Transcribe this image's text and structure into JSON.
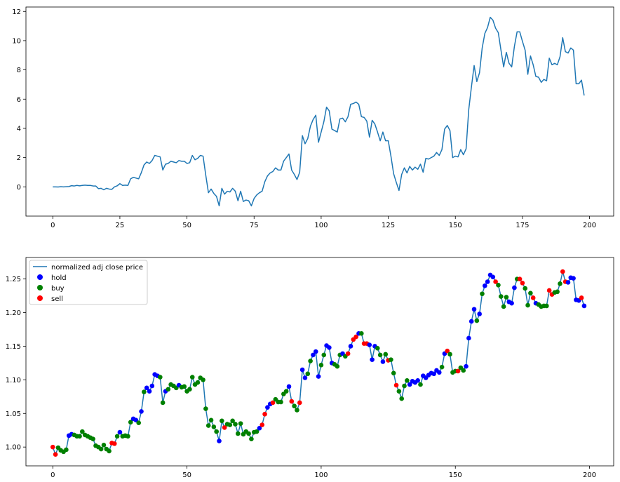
{
  "chart_data": [
    {
      "type": "line",
      "title": "",
      "xlabel": "",
      "ylabel": "",
      "xlim": [
        -10,
        209
      ],
      "ylim": [
        -2.0,
        12.3
      ],
      "xticks": [
        0,
        25,
        50,
        75,
        100,
        125,
        150,
        175,
        200
      ],
      "xtick_labels": [
        "0",
        "25",
        "50",
        "75",
        "100",
        "125",
        "150",
        "175",
        "200"
      ],
      "yticks": [
        0,
        2,
        4,
        6,
        8,
        10,
        12
      ],
      "ytick_labels": [
        "0",
        "2",
        "4",
        "6",
        "8",
        "10",
        "12"
      ],
      "grid": false,
      "line_color": "#1f77b4",
      "x_start": 0,
      "values": [
        0.0,
        0.0,
        -0.01,
        0.01,
        0.0,
        0.01,
        0.02,
        0.08,
        0.06,
        0.1,
        0.07,
        0.1,
        0.12,
        0.1,
        0.1,
        0.06,
        0.06,
        -0.12,
        -0.1,
        -0.2,
        -0.1,
        -0.15,
        -0.17,
        0.0,
        0.07,
        0.22,
        0.1,
        0.12,
        0.1,
        0.55,
        0.65,
        0.6,
        0.55,
        0.98,
        1.5,
        1.7,
        1.6,
        1.8,
        2.15,
        2.1,
        2.05,
        1.15,
        1.55,
        1.6,
        1.75,
        1.7,
        1.65,
        1.8,
        1.75,
        1.75,
        1.6,
        1.65,
        2.15,
        1.85,
        1.95,
        2.15,
        2.1,
        0.8,
        -0.4,
        -0.15,
        -0.45,
        -0.65,
        -1.3,
        -0.1,
        -0.5,
        -0.3,
        -0.35,
        -0.1,
        -0.3,
        -0.95,
        -0.3,
        -1.0,
        -0.9,
        -0.95,
        -1.3,
        -0.8,
        -0.55,
        -0.4,
        -0.3,
        0.35,
        0.75,
        0.95,
        1.05,
        1.3,
        1.15,
        1.15,
        1.75,
        2.0,
        2.25,
        1.15,
        0.85,
        0.5,
        1.0,
        3.5,
        2.95,
        3.3,
        4.15,
        4.6,
        4.9,
        3.05,
        3.75,
        4.45,
        5.45,
        5.2,
        3.95,
        3.85,
        3.75,
        4.65,
        4.7,
        4.45,
        4.8,
        5.65,
        5.7,
        5.8,
        5.65,
        4.8,
        4.75,
        4.5,
        3.4,
        4.55,
        4.3,
        3.75,
        3.15,
        3.75,
        3.15,
        3.15,
        2.1,
        0.9,
        0.3,
        -0.25,
        0.85,
        1.3,
        0.95,
        1.4,
        1.15,
        1.35,
        1.2,
        1.55,
        1.0,
        1.95,
        1.9,
        2.0,
        2.1,
        2.35,
        2.15,
        2.55,
        3.95,
        4.2,
        3.85,
        2.0,
        2.1,
        2.05,
        2.55,
        2.2,
        2.6,
        5.3,
        6.85,
        8.3,
        7.2,
        7.8,
        9.5,
        10.5,
        10.9,
        11.6,
        11.4,
        10.85,
        10.55,
        9.35,
        8.2,
        9.2,
        8.45,
        8.2,
        9.6,
        10.6,
        10.6,
        9.95,
        9.35,
        7.7,
        8.95,
        8.35,
        7.55,
        7.5,
        7.15,
        7.35,
        7.25,
        8.8,
        8.35,
        8.45,
        8.35,
        8.9,
        10.2,
        9.25,
        9.15,
        9.5,
        9.35,
        7.05,
        7.05,
        7.3,
        6.25
      ]
    },
    {
      "type": "scatter",
      "title": "",
      "xlabel": "",
      "ylabel": "",
      "xlim": [
        -10,
        209
      ],
      "ylim": [
        0.972,
        1.282
      ],
      "xticks": [
        0,
        50,
        100,
        150,
        200
      ],
      "xtick_labels": [
        "0",
        "50",
        "100",
        "150",
        "200"
      ],
      "yticks": [
        1.0,
        1.05,
        1.1,
        1.15,
        1.2,
        1.25
      ],
      "ytick_labels": [
        "1.00",
        "1.05",
        "1.10",
        "1.15",
        "1.20",
        "1.25"
      ],
      "grid": false,
      "legend_position": "upper-left",
      "line_series": {
        "name": "normalized adj close price",
        "color": "#1f77b4"
      },
      "point_series": [
        {
          "name": "hold",
          "color": "#0000ff"
        },
        {
          "name": "buy",
          "color": "#008000"
        },
        {
          "name": "sell",
          "color": "#ff0000"
        }
      ],
      "legend": [
        "normalized adj close price",
        "hold",
        "buy",
        "sell"
      ],
      "x_start": 0,
      "values": [
        1.0,
        0.989,
        0.999,
        0.995,
        0.993,
        0.996,
        1.017,
        1.019,
        1.018,
        1.016,
        1.016,
        1.023,
        1.018,
        1.016,
        1.014,
        1.012,
        1.002,
        1.0,
        0.997,
        1.003,
        0.997,
        0.994,
        1.006,
        1.005,
        1.016,
        1.022,
        1.016,
        1.017,
        1.016,
        1.037,
        1.042,
        1.04,
        1.036,
        1.053,
        1.082,
        1.088,
        1.083,
        1.091,
        1.108,
        1.106,
        1.104,
        1.066,
        1.083,
        1.086,
        1.093,
        1.091,
        1.088,
        1.092,
        1.089,
        1.09,
        1.083,
        1.086,
        1.104,
        1.093,
        1.096,
        1.103,
        1.1,
        1.057,
        1.032,
        1.04,
        1.03,
        1.023,
        1.009,
        1.039,
        1.029,
        1.034,
        1.033,
        1.039,
        1.034,
        1.02,
        1.035,
        1.019,
        1.023,
        1.02,
        1.012,
        1.022,
        1.023,
        1.028,
        1.033,
        1.049,
        1.059,
        1.064,
        1.066,
        1.071,
        1.067,
        1.067,
        1.079,
        1.083,
        1.09,
        1.068,
        1.061,
        1.055,
        1.066,
        1.115,
        1.103,
        1.109,
        1.128,
        1.137,
        1.142,
        1.105,
        1.122,
        1.137,
        1.151,
        1.148,
        1.125,
        1.123,
        1.12,
        1.137,
        1.139,
        1.135,
        1.139,
        1.15,
        1.16,
        1.164,
        1.169,
        1.169,
        1.154,
        1.154,
        1.152,
        1.13,
        1.15,
        1.147,
        1.137,
        1.127,
        1.138,
        1.129,
        1.13,
        1.11,
        1.092,
        1.083,
        1.072,
        1.091,
        1.099,
        1.093,
        1.098,
        1.096,
        1.099,
        1.093,
        1.106,
        1.103,
        1.107,
        1.11,
        1.109,
        1.114,
        1.111,
        1.119,
        1.139,
        1.143,
        1.138,
        1.111,
        1.113,
        1.113,
        1.118,
        1.114,
        1.12,
        1.162,
        1.187,
        1.205,
        1.188,
        1.198,
        1.228,
        1.24,
        1.246,
        1.256,
        1.253,
        1.246,
        1.241,
        1.224,
        1.209,
        1.223,
        1.216,
        1.214,
        1.237,
        1.25,
        1.25,
        1.244,
        1.236,
        1.211,
        1.229,
        1.222,
        1.214,
        1.212,
        1.209,
        1.21,
        1.21,
        1.233,
        1.227,
        1.23,
        1.231,
        1.243,
        1.261,
        1.246,
        1.245,
        1.252,
        1.251,
        1.219,
        1.218,
        1.222,
        1.21
      ],
      "actions": "ssbbbbhhbbbbbbbbbbbbbbssbhbbbbhhbhbhhhhhbbhbbbbhbbbbbbbbbbbbbbhbsbbbbbbbbbbbbhsshhsbbbbbhsbbshhbbhhhbbhhhbbbhbshsshbsshhhbbhbsbbsbbbbhhhhbhhhhhhhbhsbbbsbbhhhhbhbhhhhsbbbbhhhbssbbbshbbbbssbbbsshhhhhshsbbbsbbsb"
    }
  ]
}
